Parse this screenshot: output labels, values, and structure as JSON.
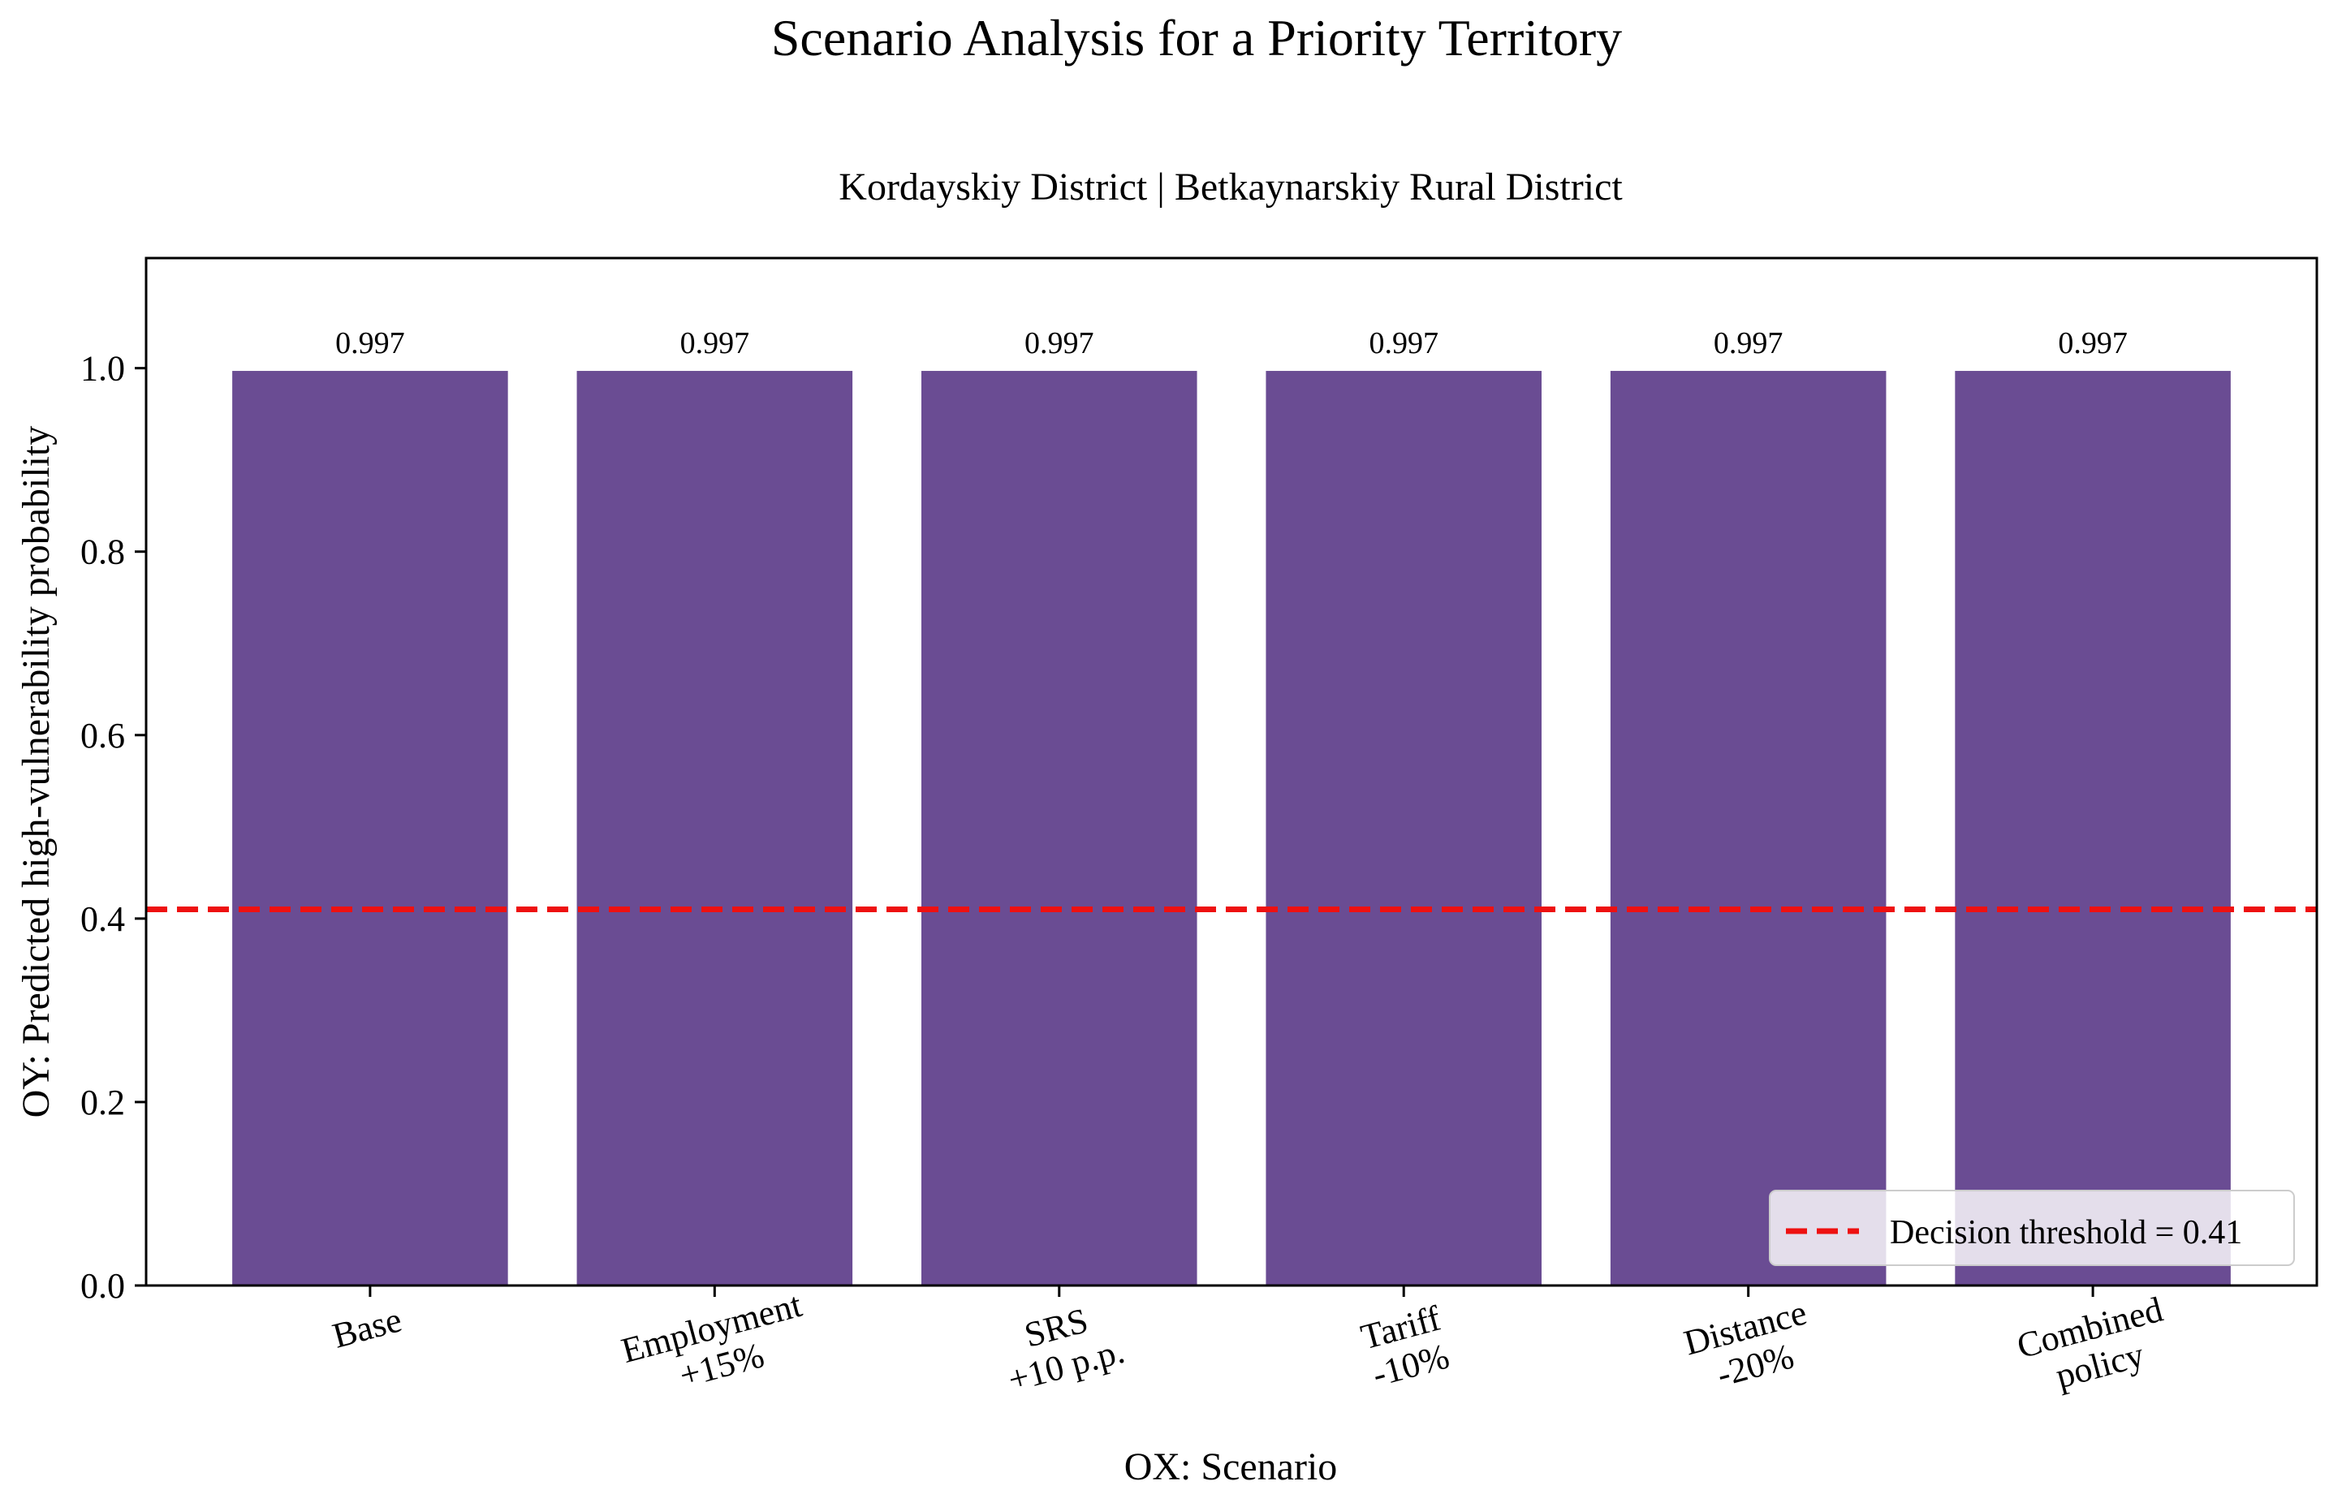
{
  "chart_data": {
    "type": "bar",
    "title": "Scenario Analysis for a Priority Territory",
    "subtitle": "Kordayskiy District | Betkaynarskiy Rural District",
    "xlabel": "OX: Scenario",
    "ylabel": "OY: Predicted high-vulnerability probability",
    "categories": [
      [
        "Base"
      ],
      [
        "Employment",
        "+15%"
      ],
      [
        "SRS",
        "+10 p.p."
      ],
      [
        "Tariff",
        "-10%"
      ],
      [
        "Distance",
        "-20%"
      ],
      [
        "Combined",
        "policy"
      ]
    ],
    "values": [
      0.997,
      0.997,
      0.997,
      0.997,
      0.997,
      0.997
    ],
    "data_labels": [
      "0.997",
      "0.997",
      "0.997",
      "0.997",
      "0.997",
      "0.997"
    ],
    "ylim": [
      0,
      1.12
    ],
    "yticks": [
      0.0,
      0.2,
      0.4,
      0.6,
      0.8,
      1.0
    ],
    "ytick_labels": [
      "0.0",
      "0.2",
      "0.4",
      "0.6",
      "0.8",
      "1.0"
    ],
    "threshold": {
      "value": 0.41,
      "label": "Decision threshold = 0.41",
      "color": "#ee1111"
    },
    "bar_color": "#6a4c93",
    "legend_position": "lower right",
    "grid": false
  }
}
